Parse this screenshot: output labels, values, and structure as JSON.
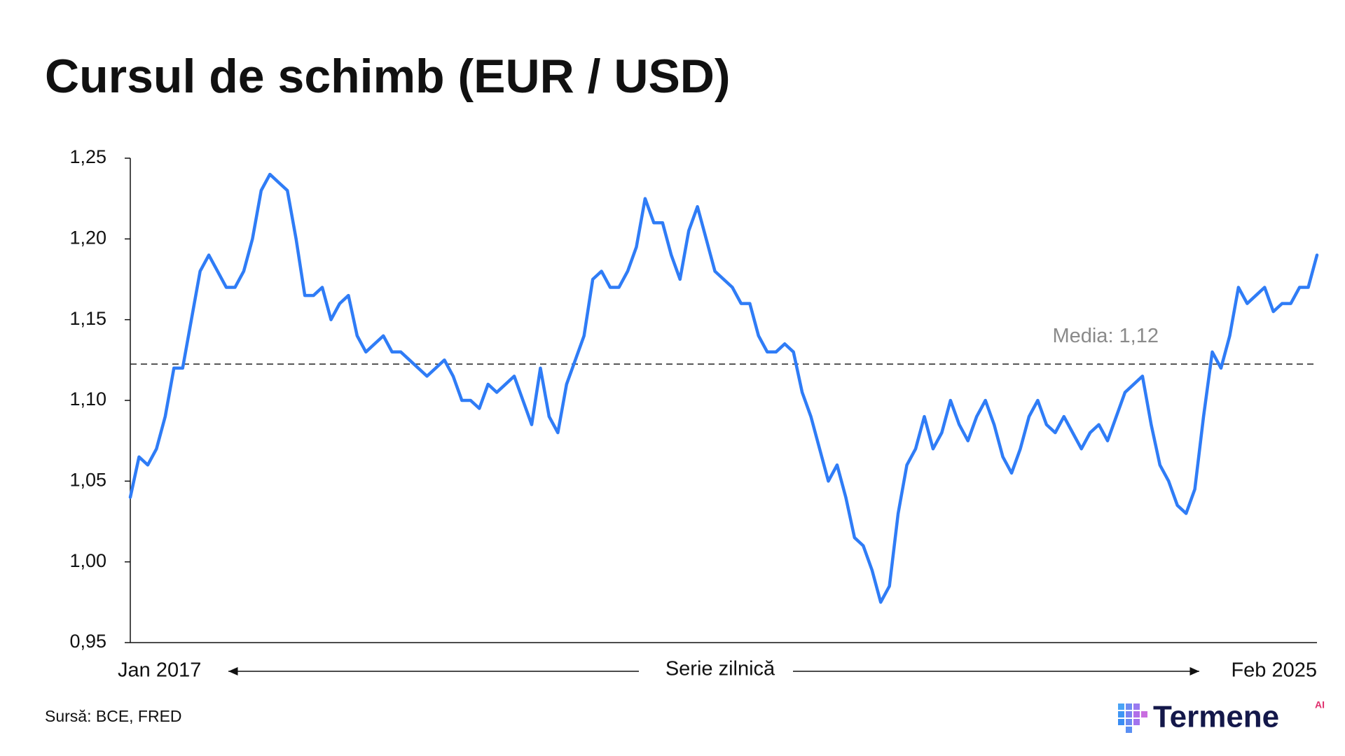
{
  "chart_data": {
    "type": "line",
    "title": "Cursul de schimb (EUR / USD)",
    "x_label": "Serie zilnică",
    "source": "Sursă: BCE, FRED",
    "brand": {
      "name": "Termene",
      "badge": "AI"
    },
    "color": "#2f7cf6",
    "reference_line": {
      "value": 1.1225,
      "label": "Media: 1,12"
    },
    "ylim": [
      0.95,
      1.25
    ],
    "yticks": [
      {
        "value": 0.95,
        "label": "0,95"
      },
      {
        "value": 1.0,
        "label": "1,00"
      },
      {
        "value": 1.05,
        "label": "1,05"
      },
      {
        "value": 1.1,
        "label": "1,10"
      },
      {
        "value": 1.15,
        "label": "1,15"
      },
      {
        "value": 1.2,
        "label": "1,20"
      },
      {
        "value": 1.25,
        "label": "1,25"
      }
    ],
    "categories": [
      "Jan 2017",
      null,
      null,
      null,
      null,
      null,
      null,
      null,
      null,
      null,
      null,
      null,
      null,
      null,
      null,
      null,
      null,
      null,
      null,
      null,
      null,
      null,
      null,
      null,
      null,
      null,
      null,
      null,
      null,
      null,
      null,
      null,
      null,
      null,
      null,
      null,
      null,
      null,
      null,
      null,
      null,
      null,
      null,
      null,
      null,
      null,
      null,
      null,
      null,
      null,
      null,
      null,
      null,
      null,
      null,
      null,
      null,
      null,
      null,
      null,
      null,
      null,
      null,
      null,
      null,
      null,
      null,
      null,
      null,
      null,
      null,
      null,
      null,
      null,
      null,
      null,
      null,
      null,
      null,
      null,
      null,
      null,
      null,
      null,
      null,
      null,
      null,
      null,
      null,
      null,
      null,
      null,
      null,
      null,
      null,
      null,
      null,
      null,
      null,
      null,
      null,
      null,
      null,
      null,
      null,
      null,
      null,
      null,
      null,
      null,
      null,
      null,
      null,
      null,
      null,
      null,
      null,
      null,
      null,
      null,
      null,
      null,
      null,
      null,
      null,
      null,
      null,
      null,
      null,
      null,
      null,
      null,
      null,
      null,
      null,
      null,
      "Feb 2025"
    ],
    "values": [
      1.04,
      1.065,
      1.06,
      1.07,
      1.09,
      1.12,
      1.12,
      1.15,
      1.18,
      1.19,
      1.18,
      1.17,
      1.17,
      1.18,
      1.2,
      1.23,
      1.24,
      1.235,
      1.23,
      1.2,
      1.165,
      1.165,
      1.17,
      1.15,
      1.16,
      1.165,
      1.14,
      1.13,
      1.135,
      1.14,
      1.13,
      1.13,
      1.125,
      1.12,
      1.115,
      1.12,
      1.125,
      1.115,
      1.1,
      1.1,
      1.095,
      1.11,
      1.105,
      1.11,
      1.115,
      1.1,
      1.085,
      1.12,
      1.09,
      1.08,
      1.11,
      1.125,
      1.14,
      1.175,
      1.18,
      1.17,
      1.17,
      1.18,
      1.195,
      1.225,
      1.21,
      1.21,
      1.19,
      1.175,
      1.205,
      1.22,
      1.2,
      1.18,
      1.175,
      1.17,
      1.16,
      1.16,
      1.14,
      1.13,
      1.13,
      1.135,
      1.13,
      1.105,
      1.09,
      1.07,
      1.05,
      1.06,
      1.04,
      1.015,
      1.01,
      0.995,
      0.975,
      0.985,
      1.03,
      1.06,
      1.07,
      1.09,
      1.07,
      1.08,
      1.1,
      1.085,
      1.075,
      1.09,
      1.1,
      1.085,
      1.065,
      1.055,
      1.07,
      1.09,
      1.1,
      1.085,
      1.08,
      1.09,
      1.08,
      1.07,
      1.08,
      1.085,
      1.075,
      1.09,
      1.105,
      1.11,
      1.115,
      1.085,
      1.06,
      1.05,
      1.035,
      1.03,
      1.045,
      1.09,
      1.13,
      1.12,
      1.14,
      1.17,
      1.16,
      1.165,
      1.17,
      1.155,
      1.16,
      1.16,
      1.17,
      1.17,
      1.19
    ]
  }
}
